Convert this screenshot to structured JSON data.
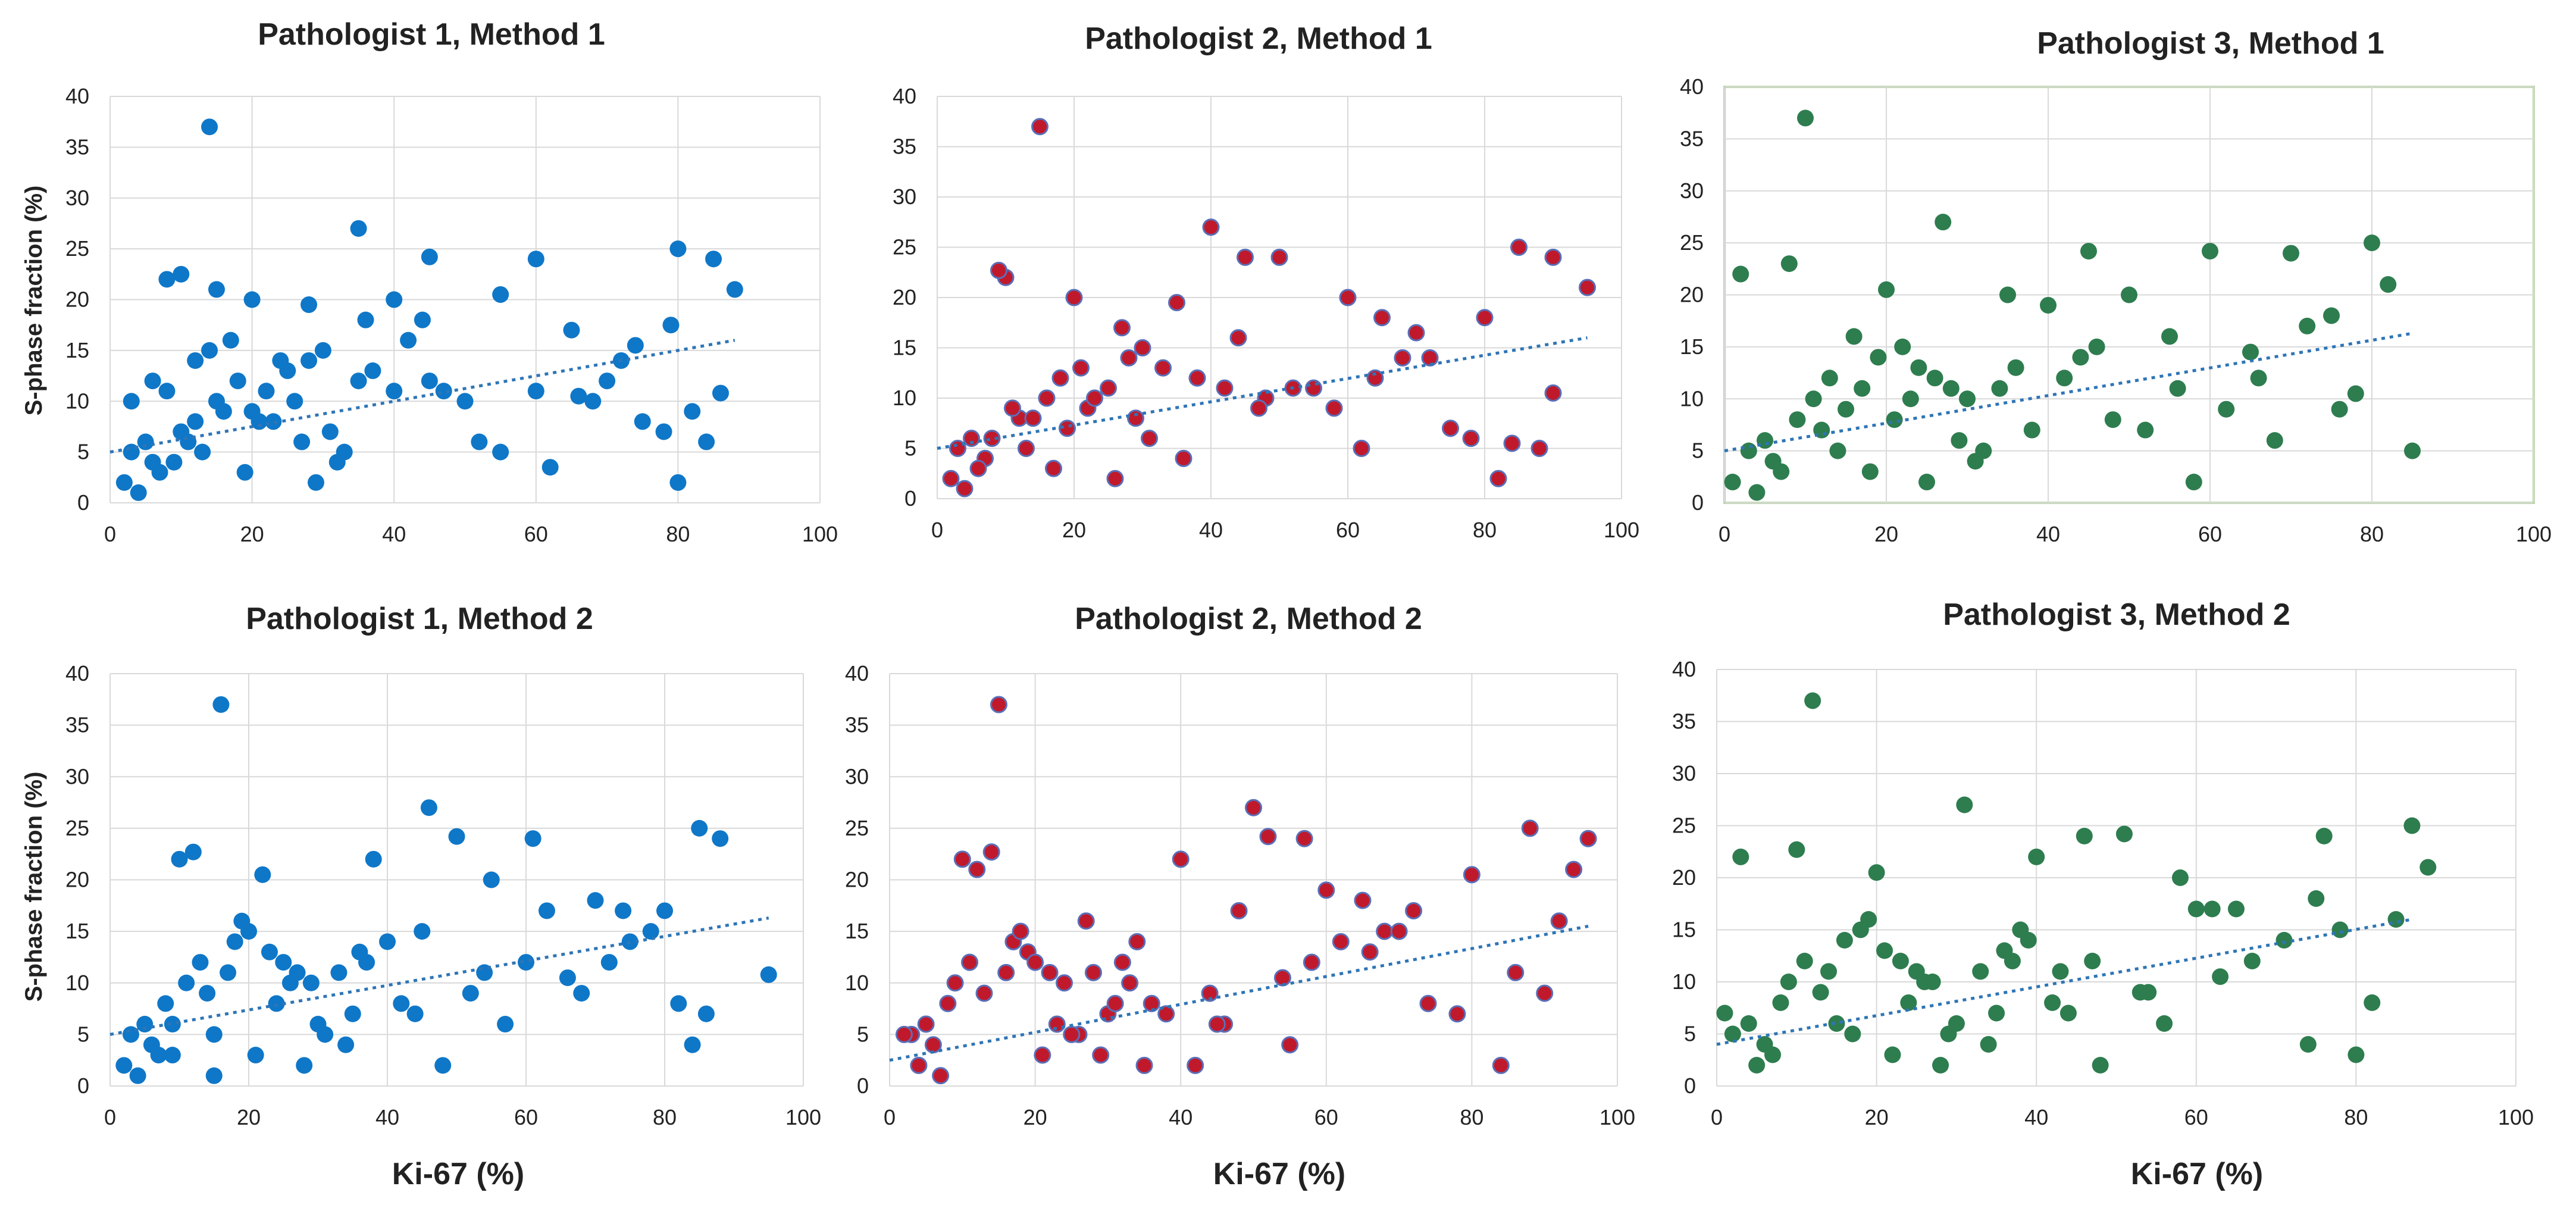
{
  "figure": {
    "x_axis_label": "Ki-67 (%)",
    "y_axis_label": "S-phase fraction (%)"
  },
  "colors": {
    "pathologist_1": "#0f77c8",
    "pathologist_2_fill": "#c0192c",
    "pathologist_2_stroke": "#5a6fb8",
    "pathologist_3": "#2e7d4f",
    "trend_line": "#2e75b6",
    "highlight_border": "#70ad47"
  },
  "chart_data": [
    {
      "type": "scatter",
      "title": "Pathologist 1, Method 1",
      "xlabel": "",
      "ylabel": "S-phase fraction (%)",
      "xlim": [
        0,
        100
      ],
      "ylim": [
        0,
        40
      ],
      "x_ticks": [
        "0",
        "20",
        "40",
        "60",
        "80",
        "100"
      ],
      "y_ticks": [
        "0",
        "5",
        "10",
        "15",
        "20",
        "25",
        "30",
        "35",
        "40"
      ],
      "trend": {
        "x": [
          0,
          88
        ],
        "y": [
          5.0,
          16.0
        ]
      },
      "points": {
        "x": [
          14,
          10,
          8,
          15,
          35,
          45,
          60,
          80,
          85,
          88,
          20,
          28,
          40,
          55,
          3,
          5,
          6,
          10,
          12,
          15,
          18,
          20,
          22,
          25,
          28,
          30,
          35,
          40,
          45,
          50,
          55,
          60,
          62,
          65,
          68,
          70,
          72,
          75,
          78,
          80,
          82,
          84,
          2,
          4,
          7,
          9,
          11,
          13,
          16,
          19,
          21,
          24,
          26,
          29,
          31,
          33,
          37,
          42,
          47,
          52,
          3,
          6,
          8,
          12,
          14,
          17,
          23,
          27,
          32,
          36,
          44,
          66,
          74,
          79,
          86
        ],
        "y": [
          37,
          22.5,
          22,
          21,
          27,
          24.2,
          24,
          25,
          24,
          21,
          20,
          19.5,
          20,
          20.5,
          5,
          6,
          4,
          7,
          8,
          10,
          12,
          9,
          11,
          13,
          14,
          15,
          12,
          11,
          12,
          10,
          5,
          11,
          3.5,
          17,
          10,
          12,
          14,
          8,
          7,
          2,
          9,
          6,
          2,
          1,
          3,
          4,
          6,
          5,
          9,
          3,
          8,
          14,
          10,
          2,
          7,
          5,
          13,
          16,
          11,
          6,
          10,
          12,
          11,
          14,
          15,
          16,
          8,
          6,
          4,
          18,
          18,
          10.5,
          15.5,
          17.5,
          10.8
        ]
      }
    },
    {
      "type": "scatter",
      "title": "Pathologist 2, Method 1",
      "xlabel": "",
      "ylabel": "",
      "xlim": [
        0,
        100
      ],
      "ylim": [
        0,
        40
      ],
      "x_ticks": [
        "0",
        "20",
        "40",
        "60",
        "80",
        "100"
      ],
      "y_ticks": [
        "0",
        "5",
        "10",
        "15",
        "20",
        "25",
        "30",
        "35",
        "40"
      ],
      "trend": {
        "x": [
          0,
          95
        ],
        "y": [
          5.0,
          16.0
        ]
      },
      "points": {
        "x": [
          15,
          10,
          9,
          40,
          50,
          60,
          85,
          90,
          95,
          20,
          35,
          45,
          65,
          70,
          80,
          3,
          5,
          7,
          12,
          16,
          18,
          22,
          25,
          28,
          30,
          33,
          38,
          42,
          48,
          55,
          62,
          68,
          75,
          82,
          88,
          2,
          4,
          6,
          8,
          11,
          13,
          14,
          17,
          19,
          21,
          23,
          26,
          29,
          31,
          36,
          44,
          52,
          58,
          64,
          72,
          78,
          84,
          90,
          27,
          47
        ],
        "y": [
          37,
          22,
          22.7,
          27,
          24,
          20,
          25,
          24,
          21,
          20,
          19.5,
          24,
          18,
          16.5,
          18,
          5,
          6,
          4,
          8,
          10,
          12,
          9,
          11,
          14,
          15,
          13,
          12,
          11,
          10,
          11,
          5,
          14,
          7,
          2,
          5,
          2,
          1,
          3,
          6,
          9,
          5,
          8,
          3,
          7,
          13,
          10,
          2,
          8,
          6,
          4,
          16,
          11,
          9,
          12,
          14,
          6,
          5.5,
          10.5,
          17,
          9
        ]
      }
    },
    {
      "type": "scatter",
      "title": "Pathologist 3, Method 1",
      "xlabel": "",
      "ylabel": "",
      "xlim": [
        0,
        100
      ],
      "ylim": [
        0,
        40
      ],
      "x_ticks": [
        "0",
        "20",
        "40",
        "60",
        "80",
        "100"
      ],
      "y_ticks": [
        "0",
        "5",
        "10",
        "15",
        "20",
        "25",
        "30",
        "35",
        "40"
      ],
      "trend": {
        "x": [
          0,
          85
        ],
        "y": [
          5.0,
          16.3
        ]
      },
      "points": {
        "x": [
          10,
          27,
          8,
          2,
          45,
          60,
          70,
          80,
          85,
          20,
          35,
          40,
          50,
          55,
          65,
          75,
          3,
          5,
          6,
          9,
          11,
          13,
          15,
          17,
          19,
          22,
          24,
          26,
          28,
          30,
          32,
          34,
          38,
          42,
          44,
          48,
          52,
          58,
          62,
          68,
          72,
          78,
          82,
          1,
          4,
          7,
          12,
          14,
          16,
          18,
          21,
          23,
          25,
          29,
          31,
          36,
          46,
          56,
          66,
          76
        ],
        "y": [
          37,
          27,
          23,
          22,
          24.2,
          24.2,
          24,
          25,
          5,
          20.5,
          20,
          19,
          20,
          16,
          14.5,
          18,
          5,
          6,
          4,
          8,
          10,
          12,
          9,
          11,
          14,
          15,
          13,
          12,
          11,
          10,
          5,
          11,
          7,
          12,
          14,
          8,
          7,
          2,
          9,
          6,
          17,
          10.5,
          21,
          2,
          1,
          3,
          7,
          5,
          16,
          3,
          8,
          10,
          2,
          6,
          4,
          13,
          15,
          11,
          12,
          9
        ]
      }
    },
    {
      "type": "scatter",
      "title": "Pathologist 1, Method 2",
      "xlabel": "Ki-67 (%)",
      "ylabel": "S-phase fraction (%)",
      "xlim": [
        0,
        100
      ],
      "ylim": [
        0,
        40
      ],
      "x_ticks": [
        "0",
        "20",
        "40",
        "60",
        "80",
        "100"
      ],
      "y_ticks": [
        "0",
        "5",
        "10",
        "15",
        "20",
        "25",
        "30",
        "35",
        "40"
      ],
      "trend": {
        "x": [
          0,
          95
        ],
        "y": [
          5.0,
          16.3
        ]
      },
      "points": {
        "x": [
          16,
          46,
          50,
          61,
          85,
          88,
          95,
          12,
          10,
          22,
          38,
          55,
          70,
          80,
          3,
          5,
          6,
          8,
          11,
          13,
          14,
          17,
          18,
          20,
          23,
          25,
          27,
          29,
          31,
          33,
          35,
          37,
          40,
          42,
          44,
          48,
          52,
          57,
          63,
          66,
          72,
          75,
          78,
          82,
          86,
          2,
          4,
          7,
          9,
          15,
          19,
          21,
          24,
          26,
          28,
          30,
          34,
          36,
          45,
          54,
          60,
          68,
          74,
          84,
          9,
          15
        ],
        "y": [
          37,
          27,
          24.2,
          24,
          25,
          24,
          10.8,
          22.7,
          22,
          20.5,
          22,
          20,
          18,
          17,
          5,
          6,
          4,
          8,
          10,
          12,
          9,
          11,
          14,
          15,
          13,
          12,
          11,
          10,
          5,
          11,
          7,
          12,
          14,
          8,
          7,
          2,
          9,
          6,
          17,
          10.5,
          12,
          14,
          15,
          8,
          7,
          2,
          1,
          3,
          6,
          5,
          16,
          3,
          8,
          10,
          2,
          6,
          4,
          13,
          15,
          11,
          12,
          9,
          17,
          4,
          3,
          1
        ]
      }
    },
    {
      "type": "scatter",
      "title": "Pathologist 2, Method 2",
      "xlabel": "Ki-67 (%)",
      "ylabel": "",
      "xlim": [
        0,
        100
      ],
      "ylim": [
        0,
        40
      ],
      "x_ticks": [
        "0",
        "20",
        "40",
        "60",
        "80",
        "100"
      ],
      "y_ticks": [
        "0",
        "5",
        "10",
        "15",
        "20",
        "25",
        "30",
        "35",
        "40"
      ],
      "trend": {
        "x": [
          0,
          96
        ],
        "y": [
          2.5,
          15.5
        ]
      },
      "points": {
        "x": [
          15,
          50,
          52,
          57,
          88,
          96,
          14,
          10,
          12,
          40,
          60,
          65,
          72,
          80,
          92,
          3,
          5,
          6,
          8,
          9,
          11,
          13,
          16,
          17,
          18,
          19,
          20,
          22,
          24,
          26,
          28,
          30,
          32,
          34,
          36,
          38,
          42,
          44,
          46,
          48,
          54,
          58,
          62,
          68,
          74,
          78,
          84,
          90,
          2,
          4,
          7,
          21,
          23,
          25,
          27,
          29,
          31,
          33,
          35,
          45,
          55,
          66,
          70,
          86,
          94
        ],
        "y": [
          37,
          27,
          24.2,
          24,
          25,
          24,
          22.7,
          22,
          21,
          22,
          19,
          18,
          17,
          20.5,
          16,
          5,
          6,
          4,
          8,
          10,
          12,
          9,
          11,
          14,
          15,
          13,
          12,
          11,
          10,
          5,
          11,
          7,
          12,
          14,
          8,
          7,
          2,
          9,
          6,
          17,
          10.5,
          12,
          14,
          15,
          8,
          7,
          2,
          9,
          5,
          2,
          1,
          3,
          6,
          5,
          16,
          3,
          8,
          10,
          2,
          6,
          4,
          13,
          15,
          11,
          21
        ]
      }
    },
    {
      "type": "scatter",
      "title": "Pathologist 3, Method 2",
      "xlabel": "Ki-67 (%)",
      "ylabel": "",
      "xlim": [
        0,
        100
      ],
      "ylim": [
        0,
        40
      ],
      "x_ticks": [
        "0",
        "20",
        "40",
        "60",
        "80",
        "100"
      ],
      "y_ticks": [
        "0",
        "5",
        "10",
        "15",
        "20",
        "25",
        "30",
        "35",
        "40"
      ],
      "trend": {
        "x": [
          0,
          87
        ],
        "y": [
          4.0,
          16.0
        ]
      },
      "points": {
        "x": [
          12,
          31,
          46,
          51,
          76,
          87,
          89,
          10,
          3,
          20,
          40,
          58,
          65,
          75,
          85,
          2,
          4,
          6,
          8,
          9,
          11,
          13,
          14,
          16,
          18,
          21,
          23,
          25,
          27,
          29,
          33,
          35,
          37,
          39,
          42,
          44,
          48,
          53,
          56,
          60,
          63,
          67,
          71,
          78,
          82,
          1,
          5,
          7,
          15,
          17,
          19,
          22,
          24,
          26,
          28,
          30,
          34,
          36,
          38,
          43,
          47,
          54,
          62,
          74,
          80
        ],
        "y": [
          37,
          27,
          24,
          24.2,
          24,
          25,
          21,
          22.7,
          22,
          20.5,
          22,
          20,
          17,
          18,
          16,
          5,
          6,
          4,
          8,
          10,
          12,
          9,
          11,
          14,
          15,
          13,
          12,
          11,
          10,
          5,
          11,
          7,
          12,
          14,
          8,
          7,
          2,
          9,
          6,
          17,
          10.5,
          12,
          14,
          15,
          8,
          7,
          2,
          3,
          6,
          5,
          16,
          3,
          8,
          10,
          2,
          6,
          4,
          13,
          15,
          11,
          12,
          9,
          17,
          4,
          3
        ]
      }
    }
  ]
}
